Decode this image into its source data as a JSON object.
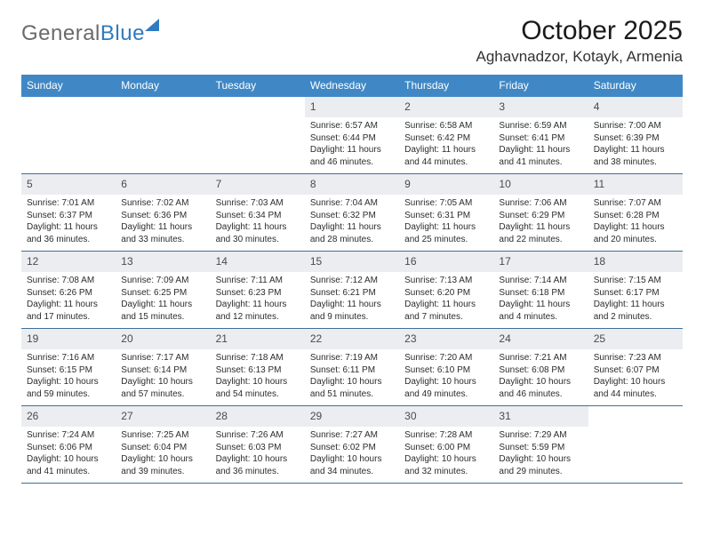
{
  "logo": {
    "word1": "General",
    "word2": "Blue"
  },
  "title": "October 2025",
  "location": "Aghavnadzor, Kotayk, Armenia",
  "colors": {
    "header_bg": "#3f88c5",
    "header_text": "#ffffff",
    "numbar_bg": "#ebedf0",
    "rule": "#3f6f9a",
    "logo_gray": "#6a6a6a",
    "logo_blue": "#2f7bbf"
  },
  "type": "calendar-table",
  "columns": [
    "Sunday",
    "Monday",
    "Tuesday",
    "Wednesday",
    "Thursday",
    "Friday",
    "Saturday"
  ],
  "weeks": [
    [
      {
        "n": "",
        "sr": "",
        "ss": "",
        "dl": ""
      },
      {
        "n": "",
        "sr": "",
        "ss": "",
        "dl": ""
      },
      {
        "n": "",
        "sr": "",
        "ss": "",
        "dl": ""
      },
      {
        "n": "1",
        "sr": "6:57 AM",
        "ss": "6:44 PM",
        "dl": "11 hours and 46 minutes."
      },
      {
        "n": "2",
        "sr": "6:58 AM",
        "ss": "6:42 PM",
        "dl": "11 hours and 44 minutes."
      },
      {
        "n": "3",
        "sr": "6:59 AM",
        "ss": "6:41 PM",
        "dl": "11 hours and 41 minutes."
      },
      {
        "n": "4",
        "sr": "7:00 AM",
        "ss": "6:39 PM",
        "dl": "11 hours and 38 minutes."
      }
    ],
    [
      {
        "n": "5",
        "sr": "7:01 AM",
        "ss": "6:37 PM",
        "dl": "11 hours and 36 minutes."
      },
      {
        "n": "6",
        "sr": "7:02 AM",
        "ss": "6:36 PM",
        "dl": "11 hours and 33 minutes."
      },
      {
        "n": "7",
        "sr": "7:03 AM",
        "ss": "6:34 PM",
        "dl": "11 hours and 30 minutes."
      },
      {
        "n": "8",
        "sr": "7:04 AM",
        "ss": "6:32 PM",
        "dl": "11 hours and 28 minutes."
      },
      {
        "n": "9",
        "sr": "7:05 AM",
        "ss": "6:31 PM",
        "dl": "11 hours and 25 minutes."
      },
      {
        "n": "10",
        "sr": "7:06 AM",
        "ss": "6:29 PM",
        "dl": "11 hours and 22 minutes."
      },
      {
        "n": "11",
        "sr": "7:07 AM",
        "ss": "6:28 PM",
        "dl": "11 hours and 20 minutes."
      }
    ],
    [
      {
        "n": "12",
        "sr": "7:08 AM",
        "ss": "6:26 PM",
        "dl": "11 hours and 17 minutes."
      },
      {
        "n": "13",
        "sr": "7:09 AM",
        "ss": "6:25 PM",
        "dl": "11 hours and 15 minutes."
      },
      {
        "n": "14",
        "sr": "7:11 AM",
        "ss": "6:23 PM",
        "dl": "11 hours and 12 minutes."
      },
      {
        "n": "15",
        "sr": "7:12 AM",
        "ss": "6:21 PM",
        "dl": "11 hours and 9 minutes."
      },
      {
        "n": "16",
        "sr": "7:13 AM",
        "ss": "6:20 PM",
        "dl": "11 hours and 7 minutes."
      },
      {
        "n": "17",
        "sr": "7:14 AM",
        "ss": "6:18 PM",
        "dl": "11 hours and 4 minutes."
      },
      {
        "n": "18",
        "sr": "7:15 AM",
        "ss": "6:17 PM",
        "dl": "11 hours and 2 minutes."
      }
    ],
    [
      {
        "n": "19",
        "sr": "7:16 AM",
        "ss": "6:15 PM",
        "dl": "10 hours and 59 minutes."
      },
      {
        "n": "20",
        "sr": "7:17 AM",
        "ss": "6:14 PM",
        "dl": "10 hours and 57 minutes."
      },
      {
        "n": "21",
        "sr": "7:18 AM",
        "ss": "6:13 PM",
        "dl": "10 hours and 54 minutes."
      },
      {
        "n": "22",
        "sr": "7:19 AM",
        "ss": "6:11 PM",
        "dl": "10 hours and 51 minutes."
      },
      {
        "n": "23",
        "sr": "7:20 AM",
        "ss": "6:10 PM",
        "dl": "10 hours and 49 minutes."
      },
      {
        "n": "24",
        "sr": "7:21 AM",
        "ss": "6:08 PM",
        "dl": "10 hours and 46 minutes."
      },
      {
        "n": "25",
        "sr": "7:23 AM",
        "ss": "6:07 PM",
        "dl": "10 hours and 44 minutes."
      }
    ],
    [
      {
        "n": "26",
        "sr": "7:24 AM",
        "ss": "6:06 PM",
        "dl": "10 hours and 41 minutes."
      },
      {
        "n": "27",
        "sr": "7:25 AM",
        "ss": "6:04 PM",
        "dl": "10 hours and 39 minutes."
      },
      {
        "n": "28",
        "sr": "7:26 AM",
        "ss": "6:03 PM",
        "dl": "10 hours and 36 minutes."
      },
      {
        "n": "29",
        "sr": "7:27 AM",
        "ss": "6:02 PM",
        "dl": "10 hours and 34 minutes."
      },
      {
        "n": "30",
        "sr": "7:28 AM",
        "ss": "6:00 PM",
        "dl": "10 hours and 32 minutes."
      },
      {
        "n": "31",
        "sr": "7:29 AM",
        "ss": "5:59 PM",
        "dl": "10 hours and 29 minutes."
      },
      {
        "n": "",
        "sr": "",
        "ss": "",
        "dl": ""
      }
    ]
  ],
  "labels": {
    "sunrise": "Sunrise:",
    "sunset": "Sunset:",
    "daylight": "Daylight:"
  }
}
